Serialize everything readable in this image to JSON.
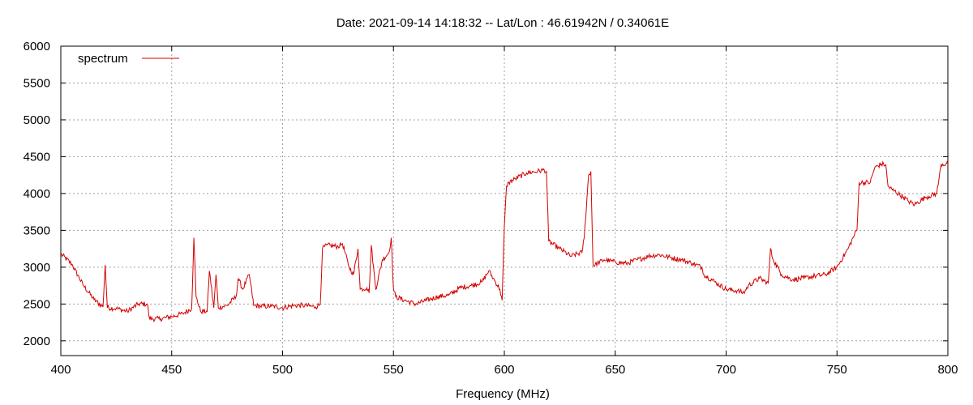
{
  "chart_data": {
    "type": "line",
    "title": "Date: 2021-09-14 14:18:32  --  Lat/Lon : 46.61942N / 0.34061E",
    "xlabel": "Frequency (MHz)",
    "ylabel": "",
    "xlim": [
      400,
      800
    ],
    "ylim": [
      1800,
      6000
    ],
    "xticks": [
      400,
      450,
      500,
      550,
      600,
      650,
      700,
      750,
      800
    ],
    "yticks": [
      2000,
      2500,
      3000,
      3500,
      4000,
      4500,
      5000,
      5500,
      6000
    ],
    "grid": true,
    "legend_position": "top-left",
    "series": [
      {
        "name": "spectrum",
        "color": "#d40000",
        "x": [
          400,
          405,
          410,
          415,
          419,
          420,
          421,
          425,
          430,
          435,
          439,
          440,
          445,
          450,
          455,
          459,
          460,
          461,
          463,
          466,
          467,
          469,
          470,
          471,
          475,
          479,
          480,
          482,
          485,
          487,
          490,
          495,
          500,
          505,
          510,
          515,
          517,
          518,
          520,
          525,
          527,
          530,
          532,
          534,
          535,
          538,
          539,
          540,
          542,
          545,
          548,
          549,
          550,
          551,
          555,
          560,
          565,
          570,
          575,
          580,
          585,
          590,
          593,
          595,
          598,
          599,
          600,
          601,
          602,
          605,
          610,
          615,
          618,
          619,
          620,
          625,
          630,
          635,
          636,
          638,
          639,
          640,
          645,
          650,
          655,
          660,
          665,
          670,
          675,
          680,
          685,
          689,
          690,
          695,
          700,
          705,
          708,
          710,
          715,
          719,
          720,
          721,
          725,
          730,
          735,
          740,
          745,
          750,
          755,
          758,
          759,
          760,
          765,
          767,
          770,
          772,
          773,
          775,
          780,
          782,
          785,
          790,
          795,
          796,
          797,
          800
        ],
        "y": [
          3180,
          3040,
          2760,
          2560,
          2460,
          3030,
          2450,
          2440,
          2400,
          2500,
          2500,
          2300,
          2300,
          2330,
          2370,
          2440,
          3400,
          2600,
          2400,
          2400,
          2950,
          2450,
          2900,
          2450,
          2480,
          2600,
          2850,
          2700,
          2900,
          2480,
          2470,
          2470,
          2450,
          2480,
          2480,
          2460,
          2500,
          3250,
          3300,
          3280,
          3320,
          3000,
          2900,
          3250,
          2700,
          2720,
          2650,
          3300,
          2700,
          3100,
          3200,
          3400,
          2700,
          2600,
          2550,
          2500,
          2550,
          2600,
          2620,
          2720,
          2750,
          2800,
          2950,
          2850,
          2700,
          2550,
          3550,
          4100,
          4150,
          4200,
          4280,
          4300,
          4320,
          4300,
          3350,
          3250,
          3150,
          3200,
          3400,
          4250,
          4300,
          3020,
          3100,
          3070,
          3050,
          3100,
          3150,
          3170,
          3130,
          3100,
          3050,
          3000,
          2900,
          2800,
          2700,
          2680,
          2650,
          2750,
          2850,
          2780,
          3250,
          3120,
          2900,
          2830,
          2850,
          2880,
          2900,
          3000,
          3250,
          3450,
          3500,
          4150,
          4150,
          4350,
          4400,
          4390,
          4100,
          4050,
          3950,
          3900,
          3850,
          3950,
          4000,
          4200,
          4400,
          4400
        ]
      }
    ]
  }
}
